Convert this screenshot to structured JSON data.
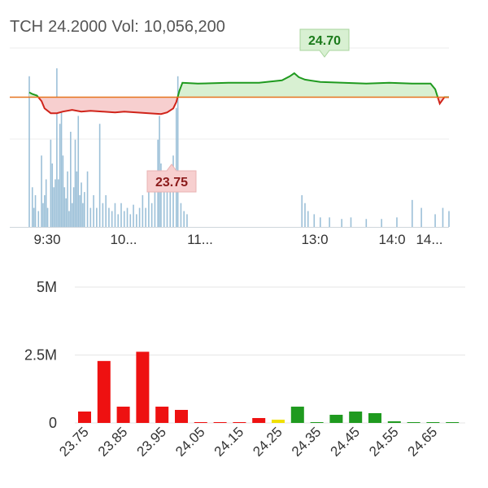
{
  "header": {
    "symbol": "TCH",
    "price": "24.2000",
    "vol_label": "Vol:",
    "vol_value": "10,056,200"
  },
  "colors": {
    "up": "#1f9a1f",
    "down": "#d0241a",
    "ref": "#e6741f",
    "up_fill": "#d8f0d2",
    "down_fill": "#f7cfcf",
    "volume": "#9cc0d8",
    "neutral": "#f0e000"
  },
  "chart_data": [
    {
      "type": "line",
      "name": "intraday",
      "reference_price": 24.2,
      "max_label": "24.70",
      "min_label": "23.75",
      "x_ticks": [
        "9:30",
        "10...",
        "11...",
        "13:0",
        "14:0",
        "14..."
      ],
      "price_points": [
        [
          0,
          24.26
        ],
        [
          2,
          24.24
        ],
        [
          5,
          24.22
        ],
        [
          8,
          24.15
        ],
        [
          10,
          24.06
        ],
        [
          14,
          24.0
        ],
        [
          18,
          24.0
        ],
        [
          22,
          24.02
        ],
        [
          28,
          24.04
        ],
        [
          34,
          24.02
        ],
        [
          40,
          24.03
        ],
        [
          48,
          24.02
        ],
        [
          56,
          24.01
        ],
        [
          62,
          24.02
        ],
        [
          70,
          24.01
        ],
        [
          78,
          24.0
        ],
        [
          86,
          23.99
        ],
        [
          90,
          24.01
        ],
        [
          94,
          24.06
        ],
        [
          96,
          24.14
        ],
        [
          98,
          24.28
        ],
        [
          100,
          24.38
        ],
        [
          110,
          24.37
        ],
        [
          130,
          24.38
        ],
        [
          150,
          24.38
        ],
        [
          165,
          24.41
        ],
        [
          170,
          24.46
        ],
        [
          173,
          24.5
        ],
        [
          176,
          24.45
        ],
        [
          180,
          24.42
        ],
        [
          190,
          24.39
        ],
        [
          205,
          24.38
        ],
        [
          220,
          24.37
        ],
        [
          235,
          24.38
        ],
        [
          250,
          24.37
        ],
        [
          262,
          24.37
        ],
        [
          265,
          24.3
        ],
        [
          268,
          24.12
        ],
        [
          271,
          24.2
        ],
        [
          274,
          24.2
        ]
      ],
      "volume_bars": [
        [
          0,
          0.95
        ],
        [
          2,
          0.25
        ],
        [
          3,
          0.12
        ],
        [
          4,
          0.2
        ],
        [
          6,
          0.1
        ],
        [
          8,
          0.45
        ],
        [
          9,
          0.15
        ],
        [
          10,
          0.2
        ],
        [
          11,
          0.3
        ],
        [
          12,
          0.12
        ],
        [
          14,
          0.55
        ],
        [
          15,
          0.4
        ],
        [
          16,
          0.25
        ],
        [
          17,
          0.3
        ],
        [
          18,
          1.0
        ],
        [
          19,
          0.3
        ],
        [
          20,
          0.65
        ],
        [
          21,
          0.72
        ],
        [
          22,
          0.45
        ],
        [
          23,
          0.25
        ],
        [
          24,
          0.18
        ],
        [
          25,
          0.35
        ],
        [
          26,
          0.1
        ],
        [
          27,
          0.6
        ],
        [
          28,
          0.15
        ],
        [
          29,
          0.25
        ],
        [
          30,
          0.55
        ],
        [
          31,
          0.35
        ],
        [
          32,
          0.7
        ],
        [
          33,
          0.2
        ],
        [
          34,
          0.28
        ],
        [
          35,
          0.15
        ],
        [
          36,
          0.22
        ],
        [
          38,
          0.35
        ],
        [
          40,
          0.12
        ],
        [
          42,
          0.2
        ],
        [
          44,
          0.12
        ],
        [
          46,
          0.65
        ],
        [
          48,
          0.15
        ],
        [
          50,
          0.2
        ],
        [
          52,
          0.12
        ],
        [
          54,
          0.1
        ],
        [
          56,
          0.15
        ],
        [
          58,
          0.08
        ],
        [
          60,
          0.15
        ],
        [
          62,
          0.1
        ],
        [
          64,
          0.12
        ],
        [
          66,
          0.08
        ],
        [
          68,
          0.14
        ],
        [
          70,
          0.08
        ],
        [
          72,
          0.12
        ],
        [
          74,
          0.2
        ],
        [
          76,
          0.12
        ],
        [
          78,
          0.3
        ],
        [
          80,
          0.15
        ],
        [
          82,
          0.22
        ],
        [
          84,
          0.55
        ],
        [
          85,
          0.7
        ],
        [
          86,
          0.4
        ],
        [
          88,
          0.3
        ],
        [
          90,
          0.25
        ],
        [
          92,
          0.35
        ],
        [
          94,
          0.45
        ],
        [
          96,
          0.75
        ],
        [
          97,
          0.95
        ],
        [
          99,
          0.15
        ],
        [
          101,
          0.1
        ],
        [
          103,
          0.08
        ],
        [
          178,
          0.2
        ],
        [
          180,
          0.15
        ],
        [
          182,
          0.1
        ],
        [
          186,
          0.08
        ],
        [
          190,
          0.06
        ],
        [
          196,
          0.06
        ],
        [
          204,
          0.05
        ],
        [
          210,
          0.06
        ],
        [
          220,
          0.05
        ],
        [
          230,
          0.05
        ],
        [
          240,
          0.06
        ],
        [
          250,
          0.17
        ],
        [
          256,
          0.12
        ],
        [
          265,
          0.08
        ],
        [
          270,
          0.12
        ],
        [
          274,
          0.1
        ]
      ]
    },
    {
      "type": "bar",
      "name": "volume-by-price",
      "ylim": [
        0,
        5000000
      ],
      "y_ticks": [
        {
          "label": "0",
          "value": 0
        },
        {
          "label": "2.5M",
          "value": 2500000
        },
        {
          "label": "5M",
          "value": 5000000
        }
      ],
      "x_tick_labels": [
        "23.75",
        "23.85",
        "23.95",
        "24.05",
        "24.15",
        "24.25",
        "24.35",
        "24.45",
        "24.55",
        "24.65"
      ],
      "bars": [
        {
          "price": 23.75,
          "value": 420000,
          "side": "down"
        },
        {
          "price": 23.8,
          "value": 2280000,
          "side": "down"
        },
        {
          "price": 23.85,
          "value": 600000,
          "side": "down"
        },
        {
          "price": 23.9,
          "value": 2620000,
          "side": "down"
        },
        {
          "price": 23.95,
          "value": 600000,
          "side": "down"
        },
        {
          "price": 24.0,
          "value": 480000,
          "side": "down"
        },
        {
          "price": 24.05,
          "value": 10000,
          "side": "down"
        },
        {
          "price": 24.1,
          "value": 8000,
          "side": "down"
        },
        {
          "price": 24.15,
          "value": 10000,
          "side": "down"
        },
        {
          "price": 24.2,
          "value": 180000,
          "side": "down"
        },
        {
          "price": 24.25,
          "value": 120000,
          "side": "neutral"
        },
        {
          "price": 24.3,
          "value": 600000,
          "side": "up"
        },
        {
          "price": 24.35,
          "value": 10000,
          "side": "up"
        },
        {
          "price": 24.4,
          "value": 300000,
          "side": "up"
        },
        {
          "price": 24.45,
          "value": 420000,
          "side": "up"
        },
        {
          "price": 24.5,
          "value": 360000,
          "side": "up"
        },
        {
          "price": 24.55,
          "value": 60000,
          "side": "up"
        },
        {
          "price": 24.6,
          "value": 10000,
          "side": "up"
        },
        {
          "price": 24.65,
          "value": 8000,
          "side": "up"
        },
        {
          "price": 24.7,
          "value": 10000,
          "side": "up"
        }
      ]
    }
  ]
}
